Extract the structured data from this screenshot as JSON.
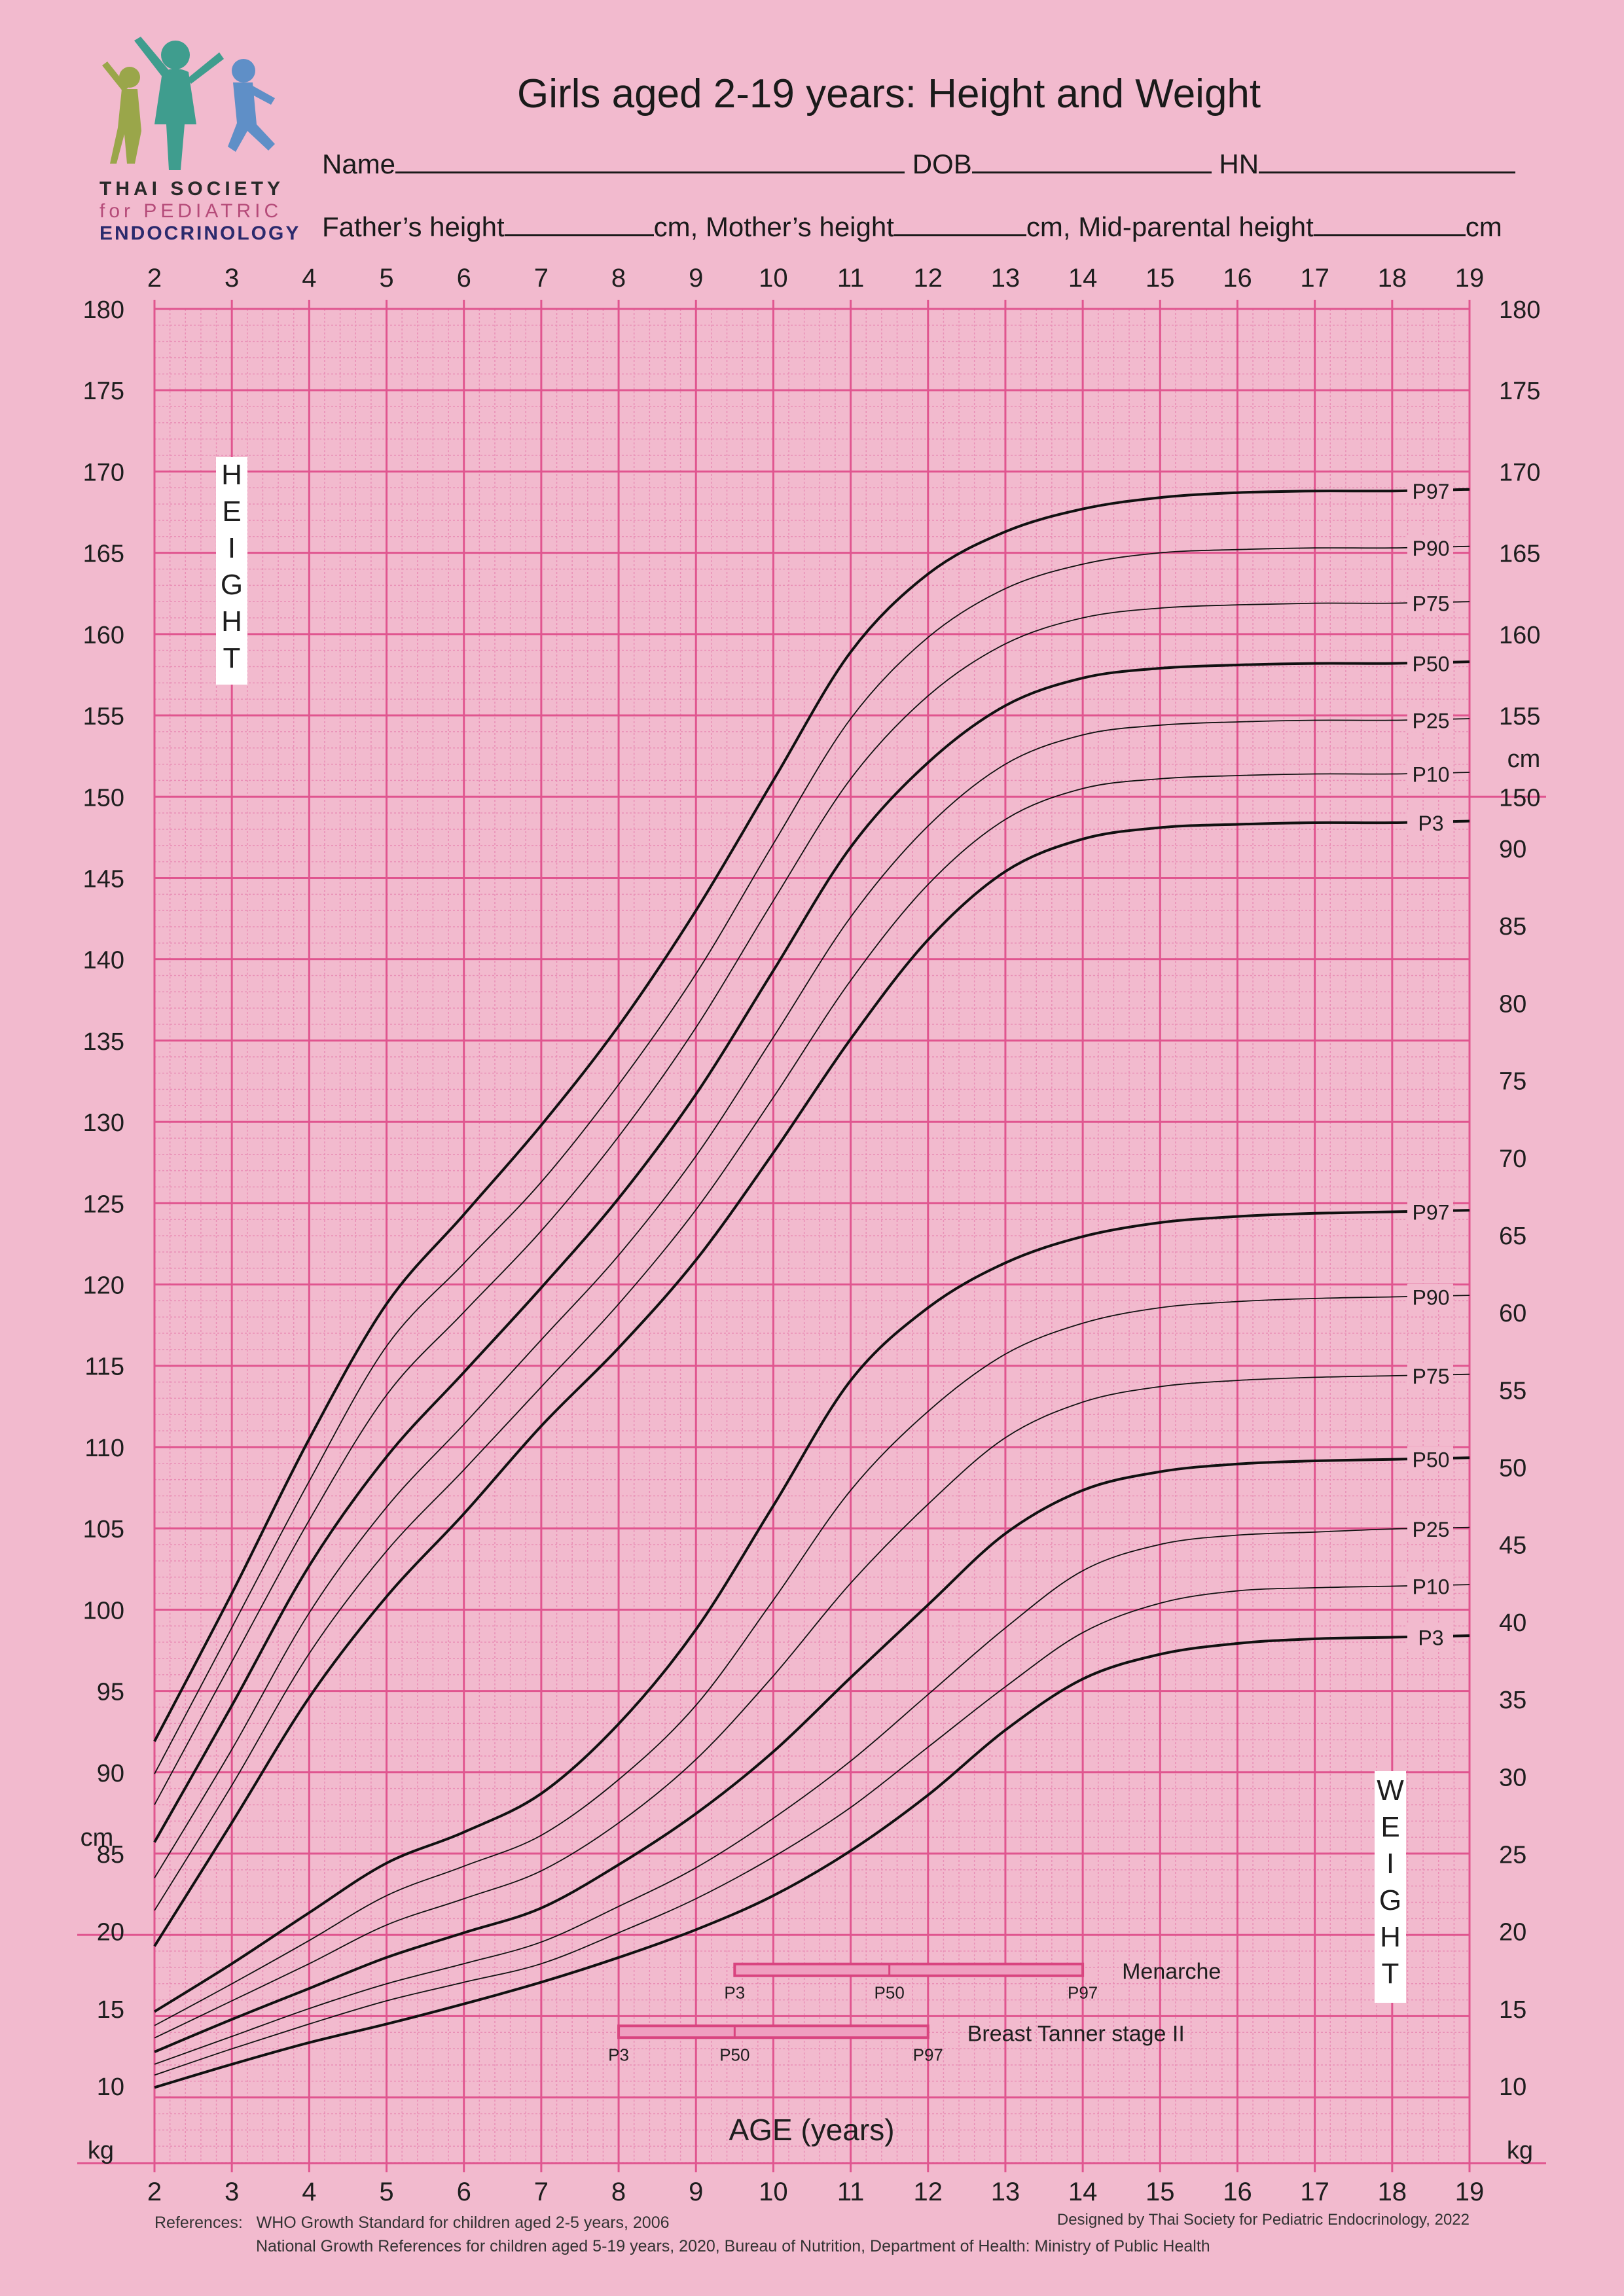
{
  "header": {
    "title": "Girls aged 2-19 years: Height and Weight",
    "name_label": "Name",
    "dob_label": "DOB",
    "hn_label": "HN",
    "father_label": "Father’s height",
    "mother_label": "cm, Mother’s height",
    "midparental_label": "cm, Mid-parental height",
    "cm_suffix": "cm"
  },
  "logo": {
    "line1": "THAI SOCIETY",
    "line2": "for PEDIATRIC",
    "line3": "ENDOCRINOLOGY",
    "icon": "jumping-children-icon"
  },
  "footer": {
    "references_label": "References:",
    "reference_1": "WHO Growth Standard for children aged 2-5 years, 2006",
    "reference_2": "National Growth References for children aged 5-19 years, 2020, Bureau of Nutrition, Department of Health: Ministry of Public Health",
    "credit": "Designed by Thai Society for Pediatric Endocrinology, 2022"
  },
  "colors": {
    "background": "#f2bace",
    "grid_major": "#e0558f",
    "grid_minor": "#e98fb6",
    "curve": "#111111",
    "bar_fill": "#ef9fc0",
    "bar_stroke": "#d9447f"
  },
  "chart_data": {
    "type": "line",
    "xlabel": "AGE (years)",
    "x_ticks": [
      2,
      3,
      4,
      5,
      6,
      7,
      8,
      9,
      10,
      11,
      12,
      13,
      14,
      15,
      16,
      17,
      18,
      19
    ],
    "xlim": [
      2,
      19
    ],
    "height_axis": {
      "label_letters": [
        "H",
        "E",
        "I",
        "G",
        "H",
        "T"
      ],
      "unit": "cm",
      "left_ticks": [
        85,
        90,
        95,
        100,
        105,
        110,
        115,
        120,
        125,
        130,
        135,
        140,
        145,
        150,
        155,
        160,
        165,
        170,
        175,
        180
      ],
      "right_ticks": [
        150,
        155,
        160,
        165,
        170,
        175,
        180
      ],
      "range": [
        85,
        180
      ]
    },
    "weight_axis": {
      "label_letters": [
        "W",
        "E",
        "I",
        "G",
        "H",
        "T"
      ],
      "unit": "kg",
      "left_ticks": [
        10,
        15,
        20
      ],
      "right_ticks": [
        10,
        15,
        20,
        25,
        30,
        35,
        40,
        45,
        50,
        55,
        60,
        65,
        70,
        75,
        80,
        85,
        90
      ],
      "range": [
        10,
        90
      ]
    },
    "height_percentiles": [
      {
        "name": "P97",
        "x": [
          2,
          3,
          4,
          5,
          6,
          7,
          8,
          9,
          10,
          11,
          12,
          13,
          14,
          15,
          16,
          17,
          18,
          19
        ],
        "y": [
          91.9,
          101,
          110.5,
          118.8,
          124.3,
          129.8,
          135.9,
          143,
          151,
          158.9,
          163.7,
          166.3,
          167.7,
          168.4,
          168.7,
          168.8,
          168.8,
          168.9
        ]
      },
      {
        "name": "P90",
        "x": [
          2,
          3,
          4,
          5,
          6,
          7,
          8,
          9,
          10,
          11,
          12,
          13,
          14,
          15,
          16,
          17,
          18,
          19
        ],
        "y": [
          89.9,
          98.9,
          107.9,
          116.2,
          121.3,
          126.3,
          132.3,
          139.1,
          147.1,
          154.8,
          159.8,
          162.8,
          164.3,
          165,
          165.2,
          165.3,
          165.3,
          165.4
        ]
      },
      {
        "name": "P75",
        "x": [
          2,
          3,
          4,
          5,
          6,
          7,
          8,
          9,
          10,
          11,
          12,
          13,
          14,
          15,
          16,
          17,
          18,
          19
        ],
        "y": [
          88,
          96.8,
          105.5,
          113.2,
          118.3,
          123.3,
          129.1,
          135.8,
          143.6,
          151.1,
          156.2,
          159.4,
          161,
          161.6,
          161.8,
          161.9,
          161.9,
          162
        ]
      },
      {
        "name": "P50",
        "x": [
          2,
          3,
          4,
          5,
          6,
          7,
          8,
          9,
          10,
          11,
          12,
          13,
          14,
          15,
          16,
          17,
          18,
          19
        ],
        "y": [
          85.7,
          94.1,
          102.7,
          109.4,
          114.6,
          119.8,
          125.3,
          131.7,
          139.3,
          146.9,
          152.1,
          155.6,
          157.3,
          157.9,
          158.1,
          158.2,
          158.2,
          158.3
        ]
      },
      {
        "name": "P25",
        "x": [
          2,
          3,
          4,
          5,
          6,
          7,
          8,
          9,
          10,
          11,
          12,
          13,
          14,
          15,
          16,
          17,
          18,
          19
        ],
        "y": [
          83.5,
          91.4,
          99.8,
          106.3,
          111.4,
          116.6,
          121.8,
          127.9,
          135.2,
          142.6,
          148.2,
          152,
          153.8,
          154.4,
          154.6,
          154.7,
          154.7,
          154.8
        ]
      },
      {
        "name": "P10",
        "x": [
          2,
          3,
          4,
          5,
          6,
          7,
          8,
          9,
          10,
          11,
          12,
          13,
          14,
          15,
          16,
          17,
          18,
          19
        ],
        "y": [
          81.5,
          89.2,
          97.3,
          103.6,
          108.6,
          113.7,
          118.8,
          124.6,
          131.5,
          138.7,
          144.6,
          148.6,
          150.5,
          151.1,
          151.3,
          151.4,
          151.4,
          151.5
        ]
      },
      {
        "name": "P3",
        "x": [
          2,
          3,
          4,
          5,
          6,
          7,
          8,
          9,
          10,
          11,
          12,
          13,
          14,
          15,
          16,
          17,
          18,
          19
        ],
        "y": [
          79.3,
          86.9,
          94.6,
          100.8,
          105.9,
          111.3,
          116.1,
          121.5,
          128.1,
          135.1,
          141.2,
          145.4,
          147.4,
          148.1,
          148.3,
          148.4,
          148.4,
          148.5
        ]
      }
    ],
    "weight_percentiles": [
      {
        "name": "P97",
        "x": [
          2,
          3,
          4,
          5,
          6,
          7,
          8,
          9,
          10,
          11,
          12,
          13,
          14,
          15,
          16,
          17,
          18,
          19
        ],
        "y": [
          14.8,
          17.9,
          21.2,
          24.4,
          26.4,
          28.9,
          33.4,
          39.5,
          47.5,
          55.6,
          60.3,
          63.2,
          64.9,
          65.8,
          66.2,
          66.4,
          66.5,
          66.6
        ]
      },
      {
        "name": "P90",
        "x": [
          2,
          3,
          4,
          5,
          6,
          7,
          8,
          9,
          10,
          11,
          12,
          13,
          14,
          15,
          16,
          17,
          18,
          19
        ],
        "y": [
          13.9,
          16.6,
          19.4,
          22.3,
          24.2,
          26.2,
          29.8,
          34.6,
          41.4,
          48.5,
          53.6,
          57.3,
          59.3,
          60.3,
          60.7,
          60.9,
          61,
          61.1
        ]
      },
      {
        "name": "P75",
        "x": [
          2,
          3,
          4,
          5,
          6,
          7,
          8,
          9,
          10,
          11,
          12,
          13,
          14,
          15,
          16,
          17,
          18,
          19
        ],
        "y": [
          13.1,
          15.5,
          17.9,
          20.4,
          22.1,
          23.9,
          27,
          31.1,
          36.5,
          42.5,
          47.6,
          51.9,
          54.2,
          55.2,
          55.6,
          55.8,
          55.9,
          56
        ]
      },
      {
        "name": "P50",
        "x": [
          2,
          3,
          4,
          5,
          6,
          7,
          8,
          9,
          10,
          11,
          12,
          13,
          14,
          15,
          16,
          17,
          18,
          19
        ],
        "y": [
          12.2,
          14.3,
          16.3,
          18.3,
          19.9,
          21.5,
          24.3,
          27.6,
          31.6,
          36.4,
          41.1,
          45.7,
          48.5,
          49.7,
          50.2,
          50.4,
          50.5,
          50.6
        ]
      },
      {
        "name": "P25",
        "x": [
          2,
          3,
          4,
          5,
          6,
          7,
          8,
          9,
          10,
          11,
          12,
          13,
          14,
          15,
          16,
          17,
          18,
          19
        ],
        "y": [
          11.4,
          13.2,
          15,
          16.6,
          17.9,
          19.3,
          21.6,
          24.1,
          27.3,
          31,
          35.3,
          39.6,
          43.3,
          45,
          45.6,
          45.8,
          46,
          46.1
        ]
      },
      {
        "name": "P10",
        "x": [
          2,
          3,
          4,
          5,
          6,
          7,
          8,
          9,
          10,
          11,
          12,
          13,
          14,
          15,
          16,
          17,
          18,
          19
        ],
        "y": [
          10.7,
          12.4,
          14,
          15.5,
          16.7,
          17.9,
          19.9,
          22.1,
          24.8,
          28,
          31.9,
          35.8,
          39.3,
          41.2,
          42,
          42.2,
          42.3,
          42.4
        ]
      },
      {
        "name": "P3",
        "x": [
          2,
          3,
          4,
          5,
          6,
          7,
          8,
          9,
          10,
          11,
          12,
          13,
          14,
          15,
          16,
          17,
          18,
          19
        ],
        "y": [
          9.9,
          11.4,
          12.8,
          14,
          15.3,
          16.7,
          18.3,
          20.1,
          22.3,
          25.2,
          28.8,
          33,
          36.3,
          37.9,
          38.6,
          38.9,
          39,
          39.1
        ]
      }
    ],
    "bands": [
      {
        "label": "Menarche",
        "p3": 9.5,
        "p50": 11.5,
        "p97": 14,
        "level": 17.5,
        "tick_labels": [
          "P3",
          "P50",
          "P97"
        ]
      },
      {
        "label": "Breast Tanner stage II",
        "p3": 8,
        "p50": 9.5,
        "p97": 12,
        "level": 13.5,
        "tick_labels": [
          "P3",
          "P50",
          "P97"
        ]
      }
    ]
  }
}
